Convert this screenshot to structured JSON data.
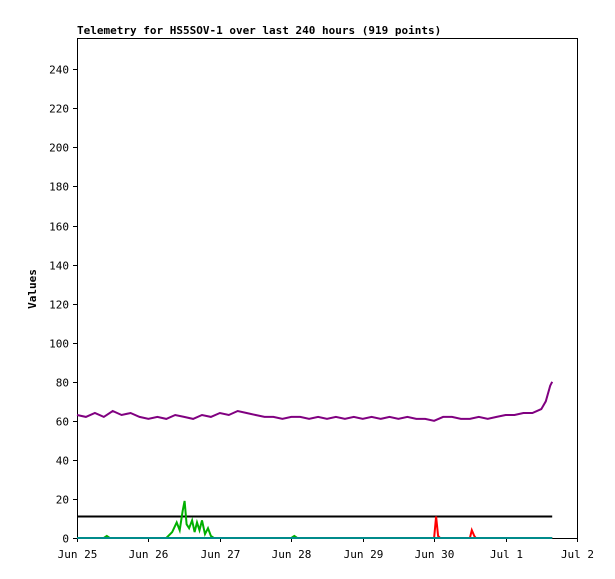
{
  "chart_data": {
    "type": "line",
    "title": "Telemetry for HS5SOV-1 over last 240 hours (919 points)",
    "xlabel": "",
    "ylabel": "Values",
    "xlim": [
      "2023-06-25T00:00",
      "2023-07-02T00:00"
    ],
    "ylim": [
      0,
      256
    ],
    "x_tick_labels": [
      "Jun 25",
      "Jun 26",
      "Jun 27",
      "Jun 28",
      "Jun 29",
      "Jun 30",
      "Jul 1",
      "Jul 2"
    ],
    "y_ticks": [
      0,
      20,
      40,
      60,
      80,
      100,
      120,
      140,
      160,
      180,
      200,
      220,
      240
    ],
    "grid": false,
    "legend": "none",
    "series": [
      {
        "color": "#800080",
        "points": [
          [
            "2023-06-25T00:00",
            63
          ],
          [
            "2023-06-25T03:00",
            62
          ],
          [
            "2023-06-25T06:00",
            64
          ],
          [
            "2023-06-25T09:00",
            62
          ],
          [
            "2023-06-25T12:00",
            65
          ],
          [
            "2023-06-25T15:00",
            63
          ],
          [
            "2023-06-25T18:00",
            64
          ],
          [
            "2023-06-25T21:00",
            62
          ],
          [
            "2023-06-26T00:00",
            61
          ],
          [
            "2023-06-26T03:00",
            62
          ],
          [
            "2023-06-26T06:00",
            61
          ],
          [
            "2023-06-26T09:00",
            63
          ],
          [
            "2023-06-26T12:00",
            62
          ],
          [
            "2023-06-26T15:00",
            61
          ],
          [
            "2023-06-26T18:00",
            63
          ],
          [
            "2023-06-26T21:00",
            62
          ],
          [
            "2023-06-27T00:00",
            64
          ],
          [
            "2023-06-27T03:00",
            63
          ],
          [
            "2023-06-27T06:00",
            65
          ],
          [
            "2023-06-27T09:00",
            64
          ],
          [
            "2023-06-27T12:00",
            63
          ],
          [
            "2023-06-27T15:00",
            62
          ],
          [
            "2023-06-27T18:00",
            62
          ],
          [
            "2023-06-27T21:00",
            61
          ],
          [
            "2023-06-28T00:00",
            62
          ],
          [
            "2023-06-28T03:00",
            62
          ],
          [
            "2023-06-28T06:00",
            61
          ],
          [
            "2023-06-28T09:00",
            62
          ],
          [
            "2023-06-28T12:00",
            61
          ],
          [
            "2023-06-28T15:00",
            62
          ],
          [
            "2023-06-28T18:00",
            61
          ],
          [
            "2023-06-28T21:00",
            62
          ],
          [
            "2023-06-29T00:00",
            61
          ],
          [
            "2023-06-29T03:00",
            62
          ],
          [
            "2023-06-29T06:00",
            61
          ],
          [
            "2023-06-29T09:00",
            62
          ],
          [
            "2023-06-29T12:00",
            61
          ],
          [
            "2023-06-29T15:00",
            62
          ],
          [
            "2023-06-29T18:00",
            61
          ],
          [
            "2023-06-29T21:00",
            61
          ],
          [
            "2023-06-30T00:00",
            60
          ],
          [
            "2023-06-30T03:00",
            62
          ],
          [
            "2023-06-30T06:00",
            62
          ],
          [
            "2023-06-30T09:00",
            61
          ],
          [
            "2023-06-30T12:00",
            61
          ],
          [
            "2023-06-30T15:00",
            62
          ],
          [
            "2023-06-30T18:00",
            61
          ],
          [
            "2023-06-30T21:00",
            62
          ],
          [
            "2023-07-01T00:00",
            63
          ],
          [
            "2023-07-01T03:00",
            63
          ],
          [
            "2023-07-01T06:00",
            64
          ],
          [
            "2023-07-01T09:00",
            64
          ],
          [
            "2023-07-01T12:00",
            66
          ],
          [
            "2023-07-01T13:30",
            70
          ],
          [
            "2023-07-01T15:00",
            78
          ],
          [
            "2023-07-01T15:40",
            80
          ]
        ]
      },
      {
        "color": "#000000",
        "points": [
          [
            "2023-06-25T00:00",
            11
          ],
          [
            "2023-06-26T12:00",
            11
          ],
          [
            "2023-06-28T00:00",
            11
          ],
          [
            "2023-06-30T00:00",
            11
          ],
          [
            "2023-07-01T15:40",
            11
          ]
        ]
      },
      {
        "color": "#00b000",
        "points": [
          [
            "2023-06-25T00:00",
            0
          ],
          [
            "2023-06-25T09:00",
            0
          ],
          [
            "2023-06-25T10:00",
            1
          ],
          [
            "2023-06-25T11:00",
            0
          ],
          [
            "2023-06-26T06:00",
            0
          ],
          [
            "2023-06-26T08:00",
            3
          ],
          [
            "2023-06-26T09:30",
            8
          ],
          [
            "2023-06-26T10:30",
            4
          ],
          [
            "2023-06-26T11:30",
            14
          ],
          [
            "2023-06-26T12:10",
            19
          ],
          [
            "2023-06-26T12:50",
            7
          ],
          [
            "2023-06-26T13:40",
            5
          ],
          [
            "2023-06-26T14:40",
            9
          ],
          [
            "2023-06-26T15:30",
            3
          ],
          [
            "2023-06-26T16:20",
            8
          ],
          [
            "2023-06-26T17:10",
            4
          ],
          [
            "2023-06-26T18:00",
            9
          ],
          [
            "2023-06-26T19:00",
            2
          ],
          [
            "2023-06-26T20:00",
            5
          ],
          [
            "2023-06-26T21:00",
            1
          ],
          [
            "2023-06-26T22:00",
            0
          ],
          [
            "2023-06-28T00:00",
            0
          ],
          [
            "2023-06-28T01:00",
            1
          ],
          [
            "2023-06-28T02:00",
            0
          ],
          [
            "2023-07-01T15:40",
            0
          ]
        ]
      },
      {
        "color": "#ff0000",
        "points": [
          [
            "2023-06-25T00:00",
            0
          ],
          [
            "2023-06-30T00:00",
            0
          ],
          [
            "2023-06-30T00:40",
            11
          ],
          [
            "2023-06-30T01:20",
            1
          ],
          [
            "2023-06-30T02:00",
            0
          ],
          [
            "2023-06-30T12:00",
            0
          ],
          [
            "2023-06-30T12:40",
            4
          ],
          [
            "2023-06-30T13:30",
            1
          ],
          [
            "2023-06-30T14:00",
            0
          ],
          [
            "2023-07-01T15:40",
            0
          ]
        ]
      },
      {
        "color": "#008b8b",
        "points": [
          [
            "2023-06-25T00:00",
            0
          ],
          [
            "2023-06-27T00:00",
            0
          ],
          [
            "2023-06-29T00:00",
            0
          ],
          [
            "2023-07-01T15:40",
            0
          ]
        ]
      }
    ]
  }
}
